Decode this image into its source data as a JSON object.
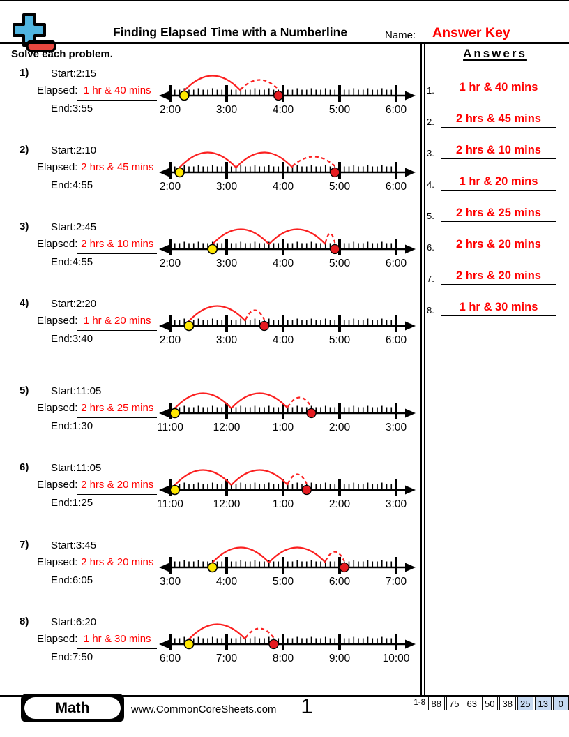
{
  "header": {
    "title": "Finding Elapsed Time with a Numberline",
    "name_label": "Name:",
    "name_value": "Answer Key",
    "instruction": "Solve each problem.",
    "answers_title": "Answers"
  },
  "colors": {
    "answer_red": "#ff0000",
    "arc_red": "#fb2020",
    "start_dot_yellow": "#ffe800",
    "end_dot_red": "#e51b20",
    "logo_blue": "#51b5e0",
    "logo_red": "#e8473f",
    "score_highlight_blue": "#c6d9f1"
  },
  "problems": [
    {
      "num": "1)",
      "start_label": "Start:",
      "start": "2:15",
      "elapsed_label": "Elapsed:",
      "elapsed": "1 hr & 40 mins",
      "end_label": "End:",
      "end": "3:55",
      "numberline": {
        "hour_labels": [
          "2:00",
          "3:00",
          "4:00",
          "5:00",
          "6:00"
        ],
        "start_offset_min": 15,
        "elapsed_whole_hours": 1,
        "elapsed_remainder_min": 40
      }
    },
    {
      "num": "2)",
      "start_label": "Start:",
      "start": "2:10",
      "elapsed_label": "Elapsed:",
      "elapsed": "2 hrs & 45 mins",
      "end_label": "End:",
      "end": "4:55",
      "numberline": {
        "hour_labels": [
          "2:00",
          "3:00",
          "4:00",
          "5:00",
          "6:00"
        ],
        "start_offset_min": 10,
        "elapsed_whole_hours": 2,
        "elapsed_remainder_min": 45
      }
    },
    {
      "num": "3)",
      "start_label": "Start:",
      "start": "2:45",
      "elapsed_label": "Elapsed:",
      "elapsed": "2 hrs & 10 mins",
      "end_label": "End:",
      "end": "4:55",
      "numberline": {
        "hour_labels": [
          "2:00",
          "3:00",
          "4:00",
          "5:00",
          "6:00"
        ],
        "start_offset_min": 45,
        "elapsed_whole_hours": 2,
        "elapsed_remainder_min": 10
      }
    },
    {
      "num": "4)",
      "start_label": "Start:",
      "start": "2:20",
      "elapsed_label": "Elapsed:",
      "elapsed": "1 hr & 20 mins",
      "end_label": "End:",
      "end": "3:40",
      "numberline": {
        "hour_labels": [
          "2:00",
          "3:00",
          "4:00",
          "5:00",
          "6:00"
        ],
        "start_offset_min": 20,
        "elapsed_whole_hours": 1,
        "elapsed_remainder_min": 20
      }
    },
    {
      "num": "5)",
      "start_label": "Start:",
      "start": "11:05",
      "elapsed_label": "Elapsed:",
      "elapsed": "2 hrs & 25 mins",
      "end_label": "End:",
      "end": "1:30",
      "numberline": {
        "hour_labels": [
          "11:00",
          "12:00",
          "1:00",
          "2:00",
          "3:00"
        ],
        "start_offset_min": 5,
        "elapsed_whole_hours": 2,
        "elapsed_remainder_min": 25
      }
    },
    {
      "num": "6)",
      "start_label": "Start:",
      "start": "11:05",
      "elapsed_label": "Elapsed:",
      "elapsed": "2 hrs & 20 mins",
      "end_label": "End:",
      "end": "1:25",
      "numberline": {
        "hour_labels": [
          "11:00",
          "12:00",
          "1:00",
          "2:00",
          "3:00"
        ],
        "start_offset_min": 5,
        "elapsed_whole_hours": 2,
        "elapsed_remainder_min": 20
      }
    },
    {
      "num": "7)",
      "start_label": "Start:",
      "start": "3:45",
      "elapsed_label": "Elapsed:",
      "elapsed": "2 hrs & 20 mins",
      "end_label": "End:",
      "end": "6:05",
      "numberline": {
        "hour_labels": [
          "3:00",
          "4:00",
          "5:00",
          "6:00",
          "7:00"
        ],
        "start_offset_min": 45,
        "elapsed_whole_hours": 2,
        "elapsed_remainder_min": 20
      }
    },
    {
      "num": "8)",
      "start_label": "Start:",
      "start": "6:20",
      "elapsed_label": "Elapsed:",
      "elapsed": "1 hr & 30 mins",
      "end_label": "End:",
      "end": "7:50",
      "numberline": {
        "hour_labels": [
          "6:00",
          "7:00",
          "8:00",
          "9:00",
          "10:00"
        ],
        "start_offset_min": 20,
        "elapsed_whole_hours": 1,
        "elapsed_remainder_min": 30
      }
    }
  ],
  "answers": [
    {
      "num": "1.",
      "text": "1 hr & 40 mins"
    },
    {
      "num": "2.",
      "text": "2 hrs & 45 mins"
    },
    {
      "num": "3.",
      "text": "2 hrs & 10 mins"
    },
    {
      "num": "4.",
      "text": "1 hr & 20 mins"
    },
    {
      "num": "5.",
      "text": "2 hrs & 25 mins"
    },
    {
      "num": "6.",
      "text": "2 hrs & 20 mins"
    },
    {
      "num": "7.",
      "text": "2 hrs & 20 mins"
    },
    {
      "num": "8.",
      "text": "1 hr & 30 mins"
    }
  ],
  "footer": {
    "subject": "Math",
    "website": "www.CommonCoreSheets.com",
    "page_number": "1",
    "problem_range": "1-8",
    "scores": [
      "88",
      "75",
      "63",
      "50",
      "38",
      "25",
      "13",
      "0"
    ]
  }
}
